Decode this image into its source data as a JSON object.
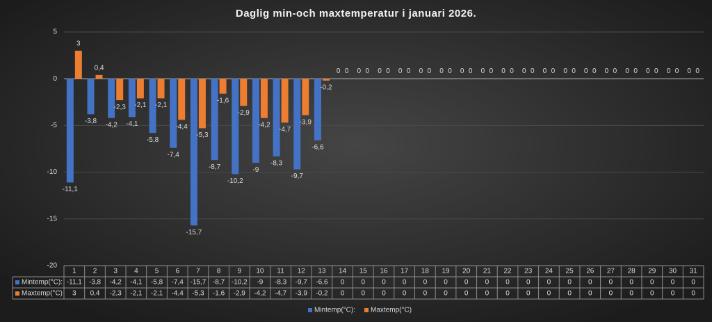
{
  "chart_data": {
    "type": "bar",
    "title": "Daglig min-och maxtemperatur i januari 2026.",
    "categories": [
      "1",
      "2",
      "3",
      "4",
      "5",
      "6",
      "7",
      "8",
      "9",
      "10",
      "11",
      "12",
      "13",
      "14",
      "15",
      "16",
      "17",
      "18",
      "19",
      "20",
      "21",
      "22",
      "23",
      "24",
      "25",
      "26",
      "27",
      "28",
      "29",
      "30",
      "31"
    ],
    "series": [
      {
        "name": "Mintemp(°C):",
        "color": "#4472c4",
        "values": [
          -11.1,
          -3.8,
          -4.2,
          -4.1,
          -5.8,
          -7.4,
          -15.7,
          -8.7,
          -10.2,
          -9,
          -8.3,
          -9.7,
          -6.6,
          0,
          0,
          0,
          0,
          0,
          0,
          0,
          0,
          0,
          0,
          0,
          0,
          0,
          0,
          0,
          0,
          0,
          0
        ],
        "value_labels": [
          "-11,1",
          "-3,8",
          "-4,2",
          "-4,1",
          "-5,8",
          "-7,4",
          "-15,7",
          "-8,7",
          "-10,2",
          "-9",
          "-8,3",
          "-9,7",
          "-6,6",
          "0",
          "0",
          "0",
          "0",
          "0",
          "0",
          "0",
          "0",
          "0",
          "0",
          "0",
          "0",
          "0",
          "0",
          "0",
          "0",
          "0",
          "0"
        ]
      },
      {
        "name": "Maxtemp(°C)",
        "color": "#ed7d31",
        "values": [
          3,
          0.4,
          -2.3,
          -2.1,
          -2.1,
          -4.4,
          -5.3,
          -1.6,
          -2.9,
          -4.2,
          -4.7,
          -3.9,
          -0.2,
          0,
          0,
          0,
          0,
          0,
          0,
          0,
          0,
          0,
          0,
          0,
          0,
          0,
          0,
          0,
          0,
          0,
          0
        ],
        "value_labels": [
          "3",
          "0,4",
          "-2,3",
          "-2,1",
          "-2,1",
          "-4,4",
          "-5,3",
          "-1,6",
          "-2,9",
          "-4,2",
          "-4,7",
          "-3,9",
          "-0,2",
          "0",
          "0",
          "0",
          "0",
          "0",
          "0",
          "0",
          "0",
          "0",
          "0",
          "0",
          "0",
          "0",
          "0",
          "0",
          "0",
          "0",
          "0"
        ]
      }
    ],
    "ylim": [
      -20,
      5
    ],
    "yticks": [
      -20,
      -15,
      -10,
      -5,
      0,
      5
    ],
    "grid": true,
    "legend": "bottom",
    "data_table": true
  }
}
